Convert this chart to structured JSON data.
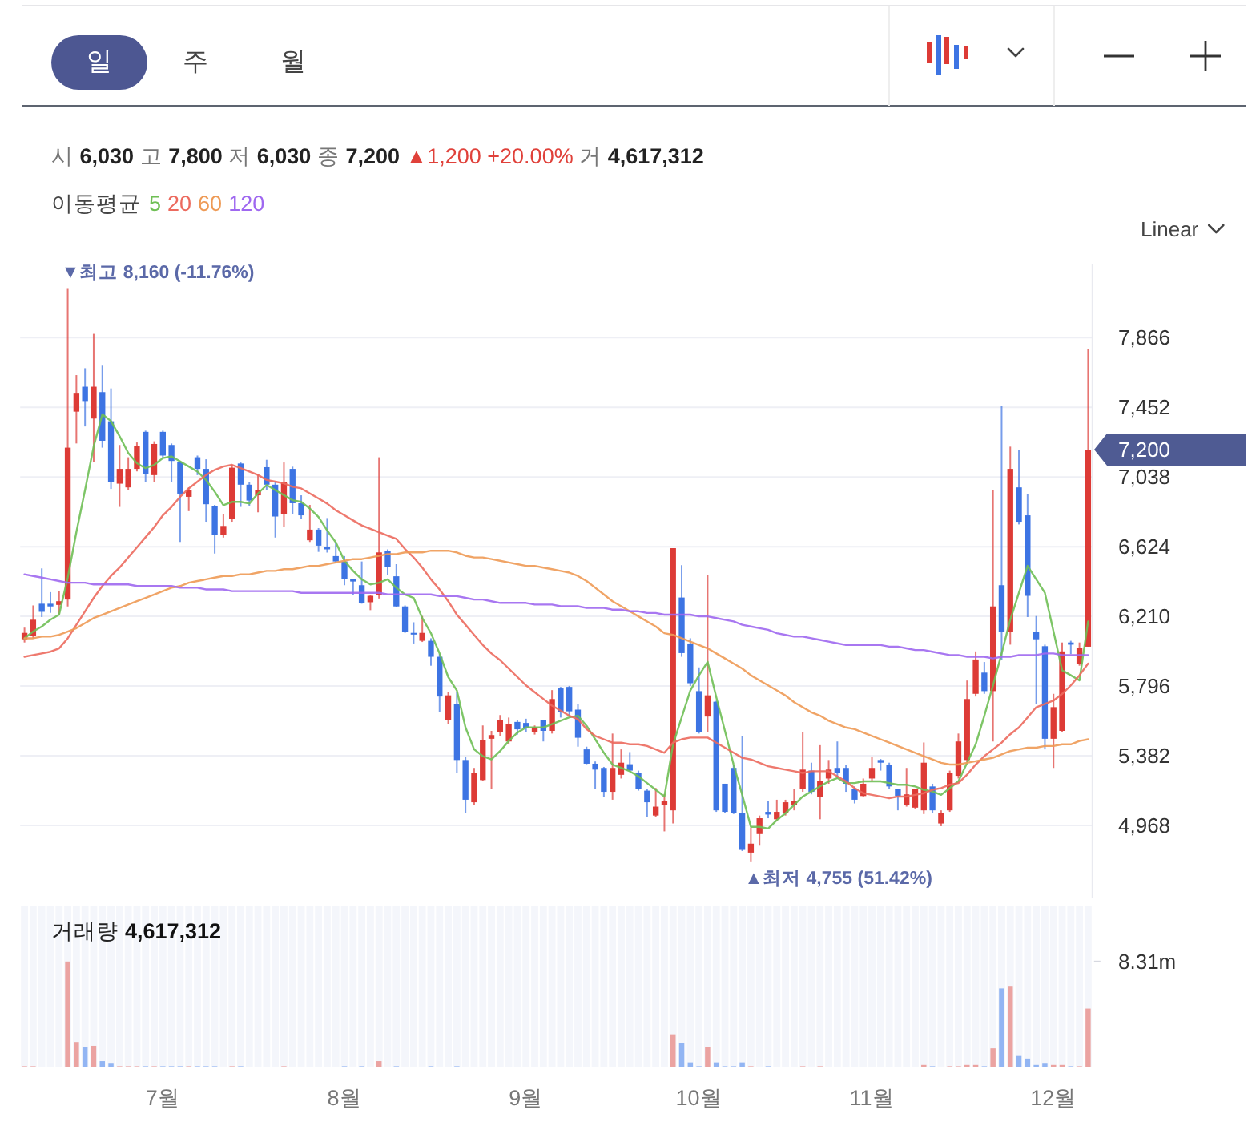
{
  "chart_data": [
    {
      "type": "candlestick",
      "title": "시 6,030 고 7,800 저 6,030 종 7,200 ▲1,200 +20.00% 거 4,617,312",
      "legend_title": "이동평균",
      "legend": "top left",
      "tick_labels": "y",
      "grid": "y",
      "categories": [
        null,
        null,
        null,
        null,
        null,
        null,
        null,
        null,
        null,
        null,
        null,
        null,
        null,
        null,
        null,
        null,
        null,
        null,
        null,
        null,
        null,
        null,
        null,
        null,
        null,
        null,
        null,
        null,
        null,
        null,
        null,
        null,
        null,
        null,
        null,
        null,
        null,
        null,
        null,
        null,
        null,
        null,
        null,
        null,
        null,
        null,
        null,
        null,
        null,
        null,
        null,
        null,
        null,
        null,
        null,
        null,
        null,
        null,
        null,
        null,
        null,
        null,
        null,
        null,
        null,
        null,
        null,
        null,
        null,
        null,
        null,
        null,
        null,
        null,
        null,
        null,
        null,
        null,
        null,
        null,
        null,
        null,
        null,
        null,
        null,
        null,
        null,
        null,
        null,
        null,
        null,
        null,
        null,
        null,
        null,
        null,
        null,
        null,
        null,
        null,
        null,
        null,
        null,
        null,
        null,
        null,
        null,
        null,
        null,
        null,
        null,
        null,
        null,
        null,
        null,
        null,
        null,
        null,
        null,
        null,
        null,
        null,
        null,
        null
      ],
      "ohlc": [
        [
          6074,
          6143,
          6055,
          6112
        ],
        [
          6096,
          6275,
          6080,
          6190
        ],
        [
          6285,
          6495,
          6206,
          6237
        ],
        [
          6285,
          6354,
          6231,
          6269
        ],
        [
          6278,
          6363,
          6222,
          6300
        ],
        [
          6310,
          8160,
          6269,
          7212
        ],
        [
          7426,
          7643,
          7237,
          7533
        ],
        [
          7574,
          7684,
          7338,
          7489
        ],
        [
          7385,
          7888,
          7127,
          7574
        ],
        [
          7542,
          7699,
          7212,
          7253
        ],
        [
          7369,
          7564,
          6967,
          7008
        ],
        [
          6998,
          7228,
          6860,
          7086
        ],
        [
          6976,
          7155,
          6961,
          7086
        ],
        [
          7086,
          7243,
          7071,
          7222
        ],
        [
          7306,
          7313,
          7008,
          7055
        ],
        [
          7049,
          7250,
          7008,
          7234
        ],
        [
          7306,
          7313,
          7149,
          7165
        ],
        [
          7228,
          7237,
          7008,
          7133
        ],
        [
          7127,
          7133,
          6652,
          6939
        ],
        [
          6920,
          6976,
          6835,
          6961
        ],
        [
          7155,
          7165,
          7049,
          7086
        ],
        [
          7086,
          7143,
          6772,
          6876
        ],
        [
          6866,
          6872,
          6583,
          6693
        ],
        [
          6693,
          6819,
          6678,
          6747
        ],
        [
          6788,
          7111,
          6772,
          7093
        ],
        [
          7118,
          7124,
          6860,
          6992
        ],
        [
          6992,
          7008,
          6866,
          6898
        ],
        [
          6929,
          7055,
          6828,
          6961
        ],
        [
          7096,
          7140,
          6961,
          6992
        ],
        [
          6992,
          7008,
          6678,
          6803
        ],
        [
          6819,
          7124,
          6740,
          7008
        ],
        [
          7086,
          7099,
          6819,
          6882
        ],
        [
          6882,
          6929,
          6788,
          6810
        ],
        [
          6662,
          6872,
          6652,
          6725
        ],
        [
          6725,
          6734,
          6593,
          6630
        ],
        [
          6621,
          6794,
          6589,
          6608
        ],
        [
          6568,
          6652,
          6527,
          6536
        ],
        [
          6536,
          6568,
          6395,
          6432
        ],
        [
          6432,
          6432,
          6338,
          6417
        ],
        [
          6395,
          6536,
          6285,
          6291
        ],
        [
          6294,
          6338,
          6247,
          6332
        ],
        [
          6338,
          7155,
          6316,
          6590
        ],
        [
          6599,
          6608,
          6457,
          6505
        ],
        [
          6448,
          6520,
          6263,
          6269
        ],
        [
          6269,
          6275,
          6112,
          6118
        ],
        [
          6112,
          6175,
          6049,
          6102
        ],
        [
          6065,
          6212,
          6058,
          6112
        ],
        [
          6065,
          6080,
          5917,
          5970
        ],
        [
          5970,
          5986,
          5640,
          5734
        ],
        [
          5593,
          5759,
          5571,
          5741
        ],
        [
          5687,
          5759,
          5279,
          5357
        ],
        [
          5357,
          5373,
          5043,
          5121
        ],
        [
          5106,
          5310,
          5090,
          5279
        ],
        [
          5238,
          5562,
          5231,
          5477
        ],
        [
          5483,
          5530,
          5184,
          5505
        ],
        [
          5521,
          5624,
          5499,
          5593
        ],
        [
          5467,
          5609,
          5452,
          5571
        ],
        [
          5583,
          5593,
          5508,
          5539
        ],
        [
          5577,
          5602,
          5521,
          5546
        ],
        [
          5521,
          5562,
          5508,
          5552
        ],
        [
          5593,
          5593,
          5467,
          5530
        ],
        [
          5530,
          5772,
          5514,
          5719
        ],
        [
          5782,
          5791,
          5609,
          5640
        ],
        [
          5791,
          5797,
          5615,
          5646
        ],
        [
          5656,
          5687,
          5436,
          5489
        ],
        [
          5420,
          5436,
          5332,
          5335
        ],
        [
          5335,
          5348,
          5184,
          5300
        ],
        [
          5310,
          5316,
          5137,
          5168
        ],
        [
          5168,
          5514,
          5121,
          5310
        ],
        [
          5269,
          5420,
          5247,
          5341
        ],
        [
          5332,
          5404,
          5288,
          5294
        ],
        [
          5279,
          5294,
          5175,
          5184
        ],
        [
          5175,
          5184,
          5018,
          5106
        ],
        [
          5027,
          5191,
          5018,
          5080
        ],
        [
          5090,
          5153,
          4933,
          5112
        ],
        [
          5058,
          6615,
          4980,
          6615
        ],
        [
          6322,
          6514,
          5970,
          5992
        ],
        [
          6049,
          6080,
          5797,
          5813
        ],
        [
          5766,
          5907,
          5514,
          5521
        ],
        [
          5615,
          6457,
          5521,
          5741
        ],
        [
          5703,
          5709,
          5049,
          5058
        ],
        [
          5216,
          5216,
          5043,
          5049
        ],
        [
          5310,
          5326,
          5036,
          5043
        ],
        [
          5043,
          5499,
          4816,
          4823
        ],
        [
          4807,
          4955,
          4755,
          4860
        ],
        [
          4917,
          5027,
          4848,
          5011
        ],
        [
          5049,
          5112,
          5011,
          5033
        ],
        [
          5005,
          5121,
          4995,
          5049
        ],
        [
          5043,
          5121,
          5027,
          5106
        ],
        [
          5090,
          5184,
          5058,
          5112
        ],
        [
          5184,
          5521,
          5168,
          5300
        ],
        [
          5294,
          5341,
          5153,
          5168
        ],
        [
          5137,
          5445,
          5005,
          5231
        ],
        [
          5247,
          5357,
          5216,
          5300
        ],
        [
          5310,
          5467,
          5247,
          5279
        ],
        [
          5310,
          5326,
          5168,
          5216
        ],
        [
          5184,
          5200,
          5099,
          5121
        ],
        [
          5143,
          5247,
          5137,
          5216
        ],
        [
          5247,
          5373,
          5231,
          5310
        ],
        [
          5357,
          5363,
          5294,
          5341
        ],
        [
          5326,
          5341,
          5184,
          5200
        ],
        [
          5184,
          5184,
          5058,
          5143
        ],
        [
          5090,
          5310,
          5080,
          5153
        ],
        [
          5074,
          5184,
          5068,
          5184
        ],
        [
          5058,
          5461,
          5036,
          5341
        ],
        [
          5200,
          5216,
          5043,
          5058
        ],
        [
          4980,
          5058,
          4964,
          5043
        ],
        [
          5058,
          5294,
          5049,
          5279
        ],
        [
          5263,
          5514,
          5247,
          5467
        ],
        [
          5357,
          5829,
          5341,
          5719
        ],
        [
          5750,
          6002,
          5734,
          5954
        ],
        [
          5876,
          5939,
          5750,
          5766
        ],
        [
          5766,
          6961,
          5467,
          6269
        ],
        [
          6395,
          7457,
          5954,
          6118
        ],
        [
          6118,
          7218,
          6042,
          7086
        ],
        [
          6976,
          7196,
          6756,
          6772
        ],
        [
          6810,
          6935,
          6206,
          6332
        ],
        [
          6118,
          6212,
          5687,
          6074
        ],
        [
          6033,
          6042,
          5420,
          5483
        ],
        [
          5483,
          5750,
          5310,
          5671
        ],
        [
          5530,
          6055,
          5521,
          6002
        ],
        [
          6055,
          6065,
          5986,
          6042
        ],
        [
          5929,
          6055,
          5917,
          6024
        ],
        [
          6030,
          7800,
          6030,
          7200
        ]
      ],
      "colors": [
        "#dd3b36",
        "#dd3b36",
        "#3d74e3",
        "#3d74e3",
        "#dd3b36",
        "#dd3b36",
        "#dd3b36",
        "#3d74e3",
        "#dd3b36",
        "#3d74e3",
        "#3d74e3",
        "#dd3b36",
        "#dd3b36",
        "#dd3b36",
        "#3d74e3",
        "#dd3b36",
        "#3d74e3",
        "#3d74e3",
        "#3d74e3",
        "#dd3b36",
        "#3d74e3",
        "#3d74e3",
        "#3d74e3",
        "#dd3b36",
        "#dd3b36",
        "#3d74e3",
        "#3d74e3",
        "#dd3b36",
        "#3d74e3",
        "#3d74e3",
        "#dd3b36",
        "#3d74e3",
        "#3d74e3",
        "#dd3b36",
        "#3d74e3",
        "#3d74e3",
        "#3d74e3",
        "#3d74e3",
        "#3d74e3",
        "#3d74e3",
        "#dd3b36",
        "#dd3b36",
        "#3d74e3",
        "#3d74e3",
        "#3d74e3",
        "#3d74e3",
        "#dd3b36",
        "#3d74e3",
        "#3d74e3",
        "#dd3b36",
        "#3d74e3",
        "#3d74e3",
        "#dd3b36",
        "#dd3b36",
        "#dd3b36",
        "#dd3b36",
        "#dd3b36",
        "#3d74e3",
        "#3d74e3",
        "#dd3b36",
        "#3d74e3",
        "#dd3b36",
        "#3d74e3",
        "#3d74e3",
        "#3d74e3",
        "#3d74e3",
        "#3d74e3",
        "#3d74e3",
        "#dd3b36",
        "#dd3b36",
        "#3d74e3",
        "#3d74e3",
        "#3d74e3",
        "#dd3b36",
        "#dd3b36",
        "#dd3b36",
        "#3d74e3",
        "#3d74e3",
        "#3d74e3",
        "#dd3b36",
        "#3d74e3",
        "#3d74e3",
        "#3d74e3",
        "#3d74e3",
        "#dd3b36",
        "#dd3b36",
        "#3d74e3",
        "#dd3b36",
        "#dd3b36",
        "#dd3b36",
        "#dd3b36",
        "#3d74e3",
        "#dd3b36",
        "#dd3b36",
        "#3d74e3",
        "#3d74e3",
        "#3d74e3",
        "#dd3b36",
        "#dd3b36",
        "#3d74e3",
        "#3d74e3",
        "#3d74e3",
        "#dd3b36",
        "#dd3b36",
        "#dd3b36",
        "#3d74e3",
        "#dd3b36",
        "#dd3b36",
        "#dd3b36",
        "#dd3b36",
        "#dd3b36",
        "#3d74e3",
        "#dd3b36",
        "#3d74e3",
        "#dd3b36",
        "#3d74e3",
        "#3d74e3",
        "#3d74e3",
        "#3d74e3",
        "#dd3b36",
        "#dd3b36",
        "#3d74e3",
        "#dd3b36",
        "#dd3b36"
      ],
      "series": [
        {
          "name": "5",
          "type": "line",
          "color": "#6fbf55",
          "values": [
            6080,
            6120,
            6150,
            6190,
            6220,
            6440,
            6710,
            6960,
            7220,
            7410,
            7370,
            7280,
            7180,
            7120,
            7090,
            7110,
            7150,
            7160,
            7130,
            7100,
            7070,
            7020,
            6950,
            6870,
            6890,
            6890,
            6880,
            6940,
            6990,
            6960,
            6930,
            6900,
            6890,
            6850,
            6800,
            6720,
            6650,
            6540,
            6480,
            6430,
            6400,
            6410,
            6430,
            6380,
            6340,
            6320,
            6200,
            6110,
            5990,
            5850,
            5770,
            5550,
            5420,
            5380,
            5360,
            5410,
            5470,
            5520,
            5550,
            5550,
            5550,
            5570,
            5590,
            5610,
            5620,
            5560,
            5480,
            5400,
            5330,
            5310,
            5290,
            5260,
            5220,
            5180,
            5140,
            5450,
            5610,
            5770,
            5860,
            5940,
            5730,
            5530,
            5330,
            5150,
            4960,
            4960,
            4950,
            5000,
            5040,
            5090,
            5140,
            5170,
            5200,
            5230,
            5250,
            5220,
            5220,
            5230,
            5230,
            5230,
            5220,
            5210,
            5210,
            5200,
            5180,
            5170,
            5150,
            5190,
            5230,
            5340,
            5450,
            5620,
            5800,
            5990,
            6190,
            6350,
            6510,
            6430,
            6350,
            6120,
            5890,
            5860,
            5830,
            6180
          ]
        },
        {
          "name": "20",
          "type": "line",
          "color": "#ec6a5e",
          "values": [
            5970,
            5980,
            5990,
            6000,
            6020,
            6080,
            6160,
            6240,
            6320,
            6390,
            6450,
            6500,
            6560,
            6620,
            6680,
            6740,
            6810,
            6860,
            6920,
            6970,
            7010,
            7050,
            7080,
            7100,
            7110,
            7090,
            7070,
            7050,
            7020,
            7010,
            7000,
            6980,
            6970,
            6940,
            6910,
            6880,
            6840,
            6810,
            6780,
            6750,
            6730,
            6710,
            6690,
            6670,
            6610,
            6560,
            6500,
            6430,
            6370,
            6300,
            6220,
            6160,
            6100,
            6040,
            5990,
            5950,
            5900,
            5850,
            5800,
            5760,
            5720,
            5680,
            5650,
            5620,
            5600,
            5540,
            5500,
            5480,
            5460,
            5460,
            5450,
            5450,
            5440,
            5420,
            5400,
            5460,
            5480,
            5490,
            5490,
            5490,
            5460,
            5430,
            5400,
            5370,
            5360,
            5340,
            5320,
            5310,
            5300,
            5290,
            5280,
            5290,
            5290,
            5290,
            5260,
            5230,
            5190,
            5160,
            5150,
            5140,
            5130,
            5140,
            5140,
            5150,
            5160,
            5180,
            5190,
            5210,
            5220,
            5270,
            5330,
            5380,
            5420,
            5460,
            5510,
            5550,
            5610,
            5670,
            5690,
            5710,
            5750,
            5800,
            5860,
            5930
          ]
        },
        {
          "name": "60",
          "type": "line",
          "color": "#ee9a55",
          "values": [
            6080,
            6080,
            6090,
            6090,
            6100,
            6120,
            6140,
            6170,
            6200,
            6220,
            6240,
            6260,
            6280,
            6300,
            6320,
            6340,
            6360,
            6380,
            6390,
            6410,
            6420,
            6430,
            6440,
            6450,
            6450,
            6460,
            6460,
            6470,
            6480,
            6480,
            6490,
            6490,
            6500,
            6510,
            6510,
            6520,
            6530,
            6540,
            6550,
            6550,
            6560,
            6570,
            6580,
            6580,
            6590,
            6590,
            6590,
            6600,
            6600,
            6600,
            6590,
            6570,
            6560,
            6560,
            6550,
            6540,
            6530,
            6520,
            6510,
            6510,
            6500,
            6490,
            6480,
            6470,
            6450,
            6420,
            6380,
            6340,
            6300,
            6270,
            6240,
            6210,
            6180,
            6150,
            6110,
            6100,
            6080,
            6060,
            6040,
            6020,
            5990,
            5960,
            5930,
            5900,
            5860,
            5830,
            5800,
            5770,
            5740,
            5700,
            5670,
            5640,
            5620,
            5590,
            5570,
            5550,
            5540,
            5520,
            5500,
            5480,
            5460,
            5440,
            5420,
            5400,
            5380,
            5360,
            5340,
            5330,
            5330,
            5340,
            5350,
            5360,
            5370,
            5390,
            5410,
            5420,
            5430,
            5430,
            5440,
            5440,
            5450,
            5450,
            5470,
            5480
          ]
        },
        {
          "name": "120",
          "type": "line",
          "color": "#9f68f0",
          "values": [
            6460,
            6450,
            6440,
            6430,
            6420,
            6410,
            6410,
            6410,
            6400,
            6400,
            6400,
            6400,
            6400,
            6390,
            6390,
            6390,
            6390,
            6390,
            6380,
            6380,
            6380,
            6370,
            6370,
            6370,
            6360,
            6360,
            6360,
            6360,
            6360,
            6360,
            6360,
            6360,
            6350,
            6350,
            6350,
            6350,
            6350,
            6350,
            6350,
            6350,
            6350,
            6350,
            6340,
            6340,
            6340,
            6340,
            6340,
            6340,
            6330,
            6330,
            6330,
            6320,
            6310,
            6310,
            6300,
            6290,
            6290,
            6290,
            6290,
            6280,
            6280,
            6280,
            6270,
            6270,
            6270,
            6260,
            6260,
            6260,
            6250,
            6250,
            6240,
            6240,
            6230,
            6230,
            6220,
            6220,
            6220,
            6220,
            6210,
            6210,
            6200,
            6190,
            6180,
            6160,
            6150,
            6140,
            6130,
            6110,
            6100,
            6090,
            6090,
            6080,
            6070,
            6060,
            6050,
            6040,
            6040,
            6040,
            6040,
            6040,
            6030,
            6030,
            6020,
            6010,
            6010,
            6000,
            5990,
            5980,
            5980,
            5970,
            5970,
            5970,
            5960,
            5970,
            5970,
            5980,
            5980,
            5980,
            5990,
            5990,
            5980,
            5980,
            5980,
            5980
          ]
        }
      ],
      "ylim": [
        4540,
        8300
      ],
      "yticks": [
        {
          "value": 4968,
          "label": "4,968"
        },
        {
          "value": 5382,
          "label": "5,382"
        },
        {
          "value": 5796,
          "label": "5,796"
        },
        {
          "value": 6210,
          "label": "6,210"
        },
        {
          "value": 6624,
          "label": "6,624"
        },
        {
          "value": 7038,
          "label": "7,038"
        },
        {
          "value": 7452,
          "label": "7,452"
        },
        {
          "value": 7866,
          "label": "7,866"
        }
      ],
      "annotations": [
        "일",
        "주",
        "월",
        "Linear",
        "7,200",
        "▼최고 8,160 (-11.76%)",
        "▲최저 4,755 (51.42%)"
      ]
    },
    {
      "type": "bar",
      "title": "거래량",
      "subtitle": "4,617,312",
      "grid": "x",
      "categories": [
        null,
        null,
        null,
        null,
        null,
        null,
        null,
        null,
        null,
        null,
        null,
        null,
        null,
        null,
        null,
        null,
        "7월",
        null,
        null,
        null,
        null,
        null,
        null,
        null,
        null,
        null,
        null,
        null,
        null,
        null,
        null,
        null,
        null,
        null,
        null,
        null,
        null,
        "8월",
        null,
        null,
        null,
        null,
        null,
        null,
        null,
        null,
        null,
        null,
        null,
        null,
        null,
        null,
        null,
        null,
        null,
        null,
        null,
        null,
        "9월",
        null,
        null,
        null,
        null,
        null,
        null,
        null,
        null,
        null,
        null,
        null,
        null,
        null,
        null,
        null,
        null,
        null,
        null,
        null,
        "10월",
        null,
        null,
        null,
        null,
        null,
        null,
        null,
        null,
        null,
        null,
        null,
        null,
        null,
        null,
        null,
        null,
        null,
        null,
        null,
        "11월",
        null,
        null,
        null,
        null,
        null,
        null,
        null,
        null,
        null,
        null,
        null,
        null,
        null,
        null,
        null,
        null,
        null,
        null,
        null,
        null,
        "12월",
        null,
        null,
        null,
        null
      ],
      "values": [
        100000,
        100000,
        0,
        0,
        0,
        8310000,
        2000000,
        1600000,
        1700000,
        500000,
        300000,
        100000,
        100000,
        100000,
        100000,
        100000,
        100000,
        100000,
        100000,
        100000,
        100000,
        100000,
        100000,
        0,
        100000,
        100000,
        0,
        0,
        0,
        0,
        100000,
        0,
        0,
        0,
        0,
        0,
        0,
        100000,
        0,
        100000,
        0,
        500000,
        0,
        100000,
        0,
        0,
        0,
        100000,
        0,
        0,
        100000,
        0,
        0,
        0,
        0,
        0,
        0,
        0,
        0,
        0,
        0,
        0,
        0,
        0,
        0,
        0,
        0,
        0,
        0,
        0,
        0,
        0,
        0,
        0,
        0,
        2600000,
        1900000,
        400000,
        100000,
        1600000,
        400000,
        100000,
        100000,
        400000,
        100000,
        0,
        100000,
        0,
        0,
        0,
        100000,
        0,
        100000,
        0,
        0,
        0,
        0,
        0,
        0,
        0,
        0,
        0,
        0,
        0,
        200000,
        100000,
        0,
        100000,
        100000,
        200000,
        200000,
        100000,
        1500000,
        6200000,
        6400000,
        900000,
        700000,
        200000,
        300000,
        200000,
        200000,
        100000,
        100000,
        4617312
      ],
      "colors": [
        "#eba3a1",
        "#eba3a1",
        "#92b5f3",
        "#92b5f3",
        "#eba3a1",
        "#eba3a1",
        "#eba3a1",
        "#92b5f3",
        "#eba3a1",
        "#92b5f3",
        "#92b5f3",
        "#eba3a1",
        "#eba3a1",
        "#eba3a1",
        "#92b5f3",
        "#eba3a1",
        "#92b5f3",
        "#92b5f3",
        "#92b5f3",
        "#eba3a1",
        "#92b5f3",
        "#92b5f3",
        "#92b5f3",
        "#eba3a1",
        "#eba3a1",
        "#92b5f3",
        "#92b5f3",
        "#eba3a1",
        "#92b5f3",
        "#92b5f3",
        "#eba3a1",
        "#92b5f3",
        "#92b5f3",
        "#eba3a1",
        "#92b5f3",
        "#92b5f3",
        "#92b5f3",
        "#92b5f3",
        "#92b5f3",
        "#92b5f3",
        "#eba3a1",
        "#eba3a1",
        "#92b5f3",
        "#92b5f3",
        "#92b5f3",
        "#92b5f3",
        "#eba3a1",
        "#92b5f3",
        "#92b5f3",
        "#eba3a1",
        "#92b5f3",
        "#92b5f3",
        "#eba3a1",
        "#eba3a1",
        "#eba3a1",
        "#eba3a1",
        "#eba3a1",
        "#92b5f3",
        "#92b5f3",
        "#eba3a1",
        "#92b5f3",
        "#eba3a1",
        "#92b5f3",
        "#92b5f3",
        "#92b5f3",
        "#92b5f3",
        "#92b5f3",
        "#92b5f3",
        "#eba3a1",
        "#eba3a1",
        "#92b5f3",
        "#92b5f3",
        "#92b5f3",
        "#eba3a1",
        "#eba3a1",
        "#eba3a1",
        "#92b5f3",
        "#92b5f3",
        "#92b5f3",
        "#eba3a1",
        "#92b5f3",
        "#92b5f3",
        "#92b5f3",
        "#92b5f3",
        "#eba3a1",
        "#eba3a1",
        "#92b5f3",
        "#eba3a1",
        "#eba3a1",
        "#eba3a1",
        "#eba3a1",
        "#92b5f3",
        "#eba3a1",
        "#eba3a1",
        "#92b5f3",
        "#92b5f3",
        "#92b5f3",
        "#eba3a1",
        "#eba3a1",
        "#92b5f3",
        "#92b5f3",
        "#92b5f3",
        "#eba3a1",
        "#eba3a1",
        "#eba3a1",
        "#92b5f3",
        "#eba3a1",
        "#eba3a1",
        "#eba3a1",
        "#eba3a1",
        "#eba3a1",
        "#92b5f3",
        "#eba3a1",
        "#92b5f3",
        "#eba3a1",
        "#92b5f3",
        "#92b5f3",
        "#92b5f3",
        "#92b5f3",
        "#eba3a1",
        "#eba3a1",
        "#92b5f3",
        "#eba3a1",
        "#eba3a1"
      ],
      "ylim": [
        0,
        12700000
      ],
      "yticks": [
        {
          "value": 8310000,
          "label": "8.31m"
        }
      ]
    }
  ]
}
